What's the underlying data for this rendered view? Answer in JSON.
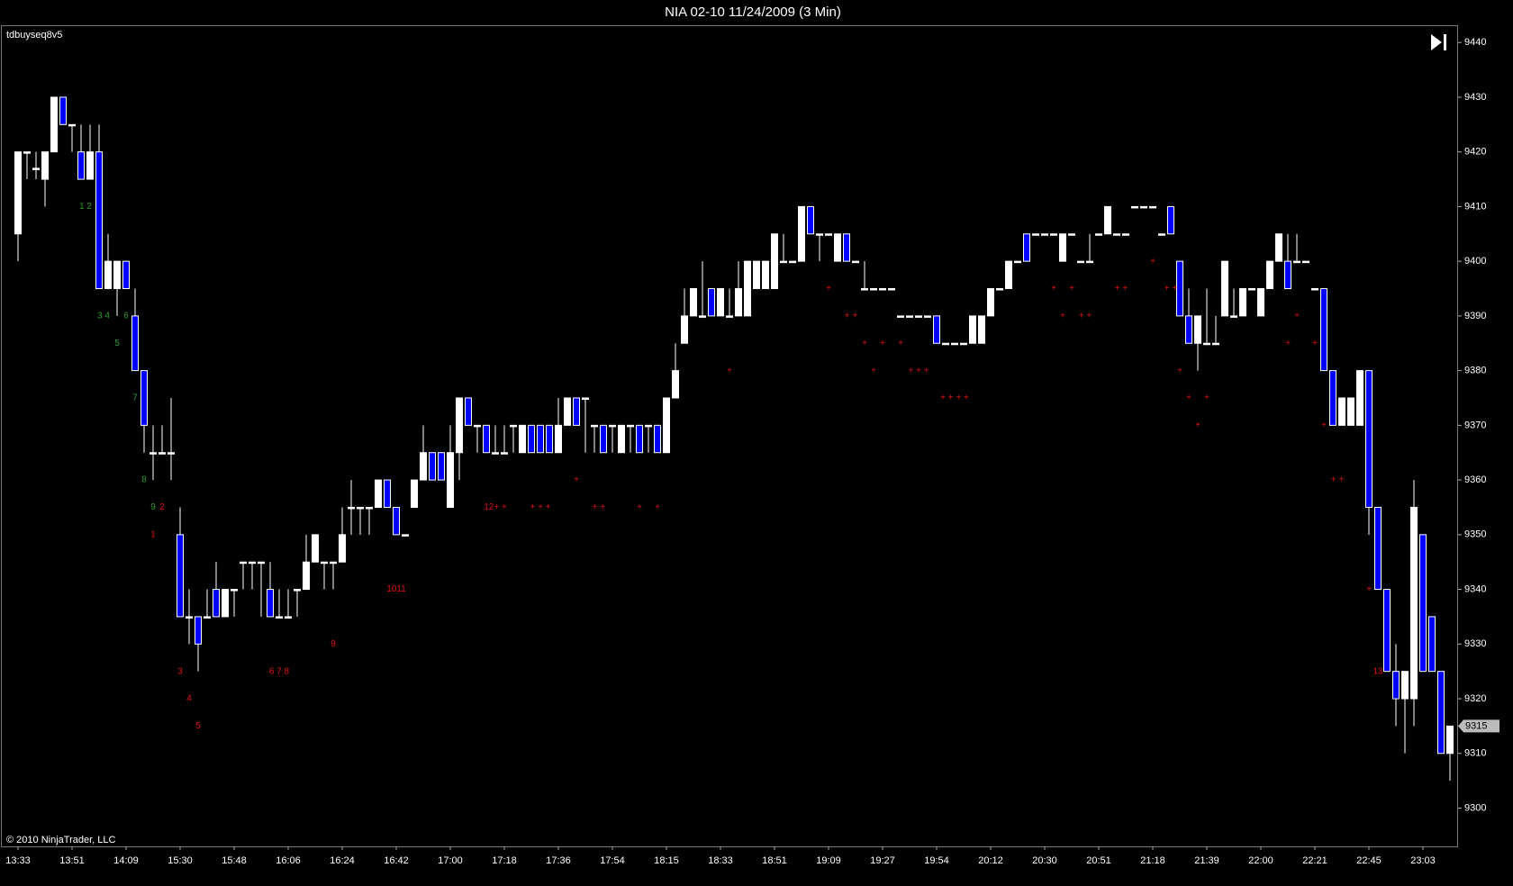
{
  "chart_data": {
    "type": "candlestick",
    "title": "NIA 02-10  11/24/2009 (3 Min)",
    "indicator_label": "tdbuyseq8v5",
    "copyright": "© 2010 NinjaTrader, LLC",
    "up_color": "#ffffff",
    "down_color": "#0000ff",
    "ylim": [
      9293,
      9443
    ],
    "yticks": [
      9300,
      9310,
      9320,
      9330,
      9340,
      9350,
      9360,
      9370,
      9380,
      9390,
      9400,
      9410,
      9420,
      9430,
      9440
    ],
    "last_price": 9315,
    "categories": [
      "13:33",
      null,
      null,
      null,
      null,
      null,
      "13:51",
      null,
      null,
      null,
      null,
      null,
      "14:09",
      null,
      null,
      null,
      null,
      null,
      "15:30",
      null,
      null,
      null,
      null,
      null,
      "15:48",
      null,
      null,
      null,
      null,
      null,
      "16:06",
      null,
      null,
      null,
      null,
      null,
      "16:24",
      null,
      null,
      null,
      null,
      null,
      "16:42",
      null,
      null,
      null,
      null,
      null,
      "17:00",
      null,
      null,
      null,
      null,
      null,
      "17:18",
      null,
      null,
      null,
      null,
      null,
      "17:36",
      null,
      null,
      null,
      null,
      null,
      "17:54",
      null,
      null,
      null,
      null,
      null,
      "18:15",
      null,
      null,
      null,
      null,
      null,
      "18:33",
      null,
      null,
      null,
      null,
      null,
      "18:51",
      null,
      null,
      null,
      null,
      null,
      "19:09",
      null,
      null,
      null,
      null,
      null,
      "19:27",
      null,
      null,
      null,
      null,
      null,
      "19:54",
      null,
      null,
      null,
      null,
      null,
      "20:12",
      null,
      null,
      null,
      null,
      null,
      "20:30",
      null,
      null,
      null,
      null,
      null,
      "20:51",
      null,
      null,
      null,
      null,
      null,
      "21:18",
      null,
      null,
      null,
      null,
      null,
      "21:39",
      null,
      null,
      null,
      null,
      null,
      "22:00",
      null,
      null,
      null,
      null,
      null,
      "22:21",
      null,
      null,
      null,
      null,
      null,
      "22:45",
      null,
      null,
      null,
      null,
      null,
      "23:03",
      null,
      null,
      null
    ],
    "candles": [
      [
        9405,
        9420,
        9400,
        9420
      ],
      [
        9420,
        9420,
        9415,
        9420
      ],
      [
        9417,
        9420,
        9415,
        9417
      ],
      [
        9415,
        9420,
        9410,
        9420
      ],
      [
        9420,
        9430,
        9420,
        9430
      ],
      [
        9430,
        9430,
        9425,
        9425
      ],
      [
        9425,
        9425,
        9420,
        9425
      ],
      [
        9420,
        9425,
        9415,
        9415
      ],
      [
        9415,
        9425,
        9415,
        9420
      ],
      [
        9420,
        9425,
        9395,
        9395
      ],
      [
        9395,
        9405,
        9395,
        9400
      ],
      [
        9395,
        9400,
        9390,
        9400
      ],
      [
        9400,
        9400,
        9395,
        9395
      ],
      [
        9390,
        9395,
        9380,
        9380
      ],
      [
        9380,
        9380,
        9365,
        9370
      ],
      [
        9365,
        9370,
        9360,
        9365
      ],
      [
        9365,
        9370,
        9365,
        9365
      ],
      [
        9365,
        9375,
        9360,
        9365
      ],
      [
        9350,
        9355,
        9335,
        9335
      ],
      [
        9335,
        9340,
        9330,
        9335
      ],
      [
        9335,
        9335,
        9325,
        9330
      ],
      [
        9335,
        9340,
        9335,
        9335
      ],
      [
        9340,
        9345,
        9335,
        9335
      ],
      [
        9335,
        9340,
        9335,
        9340
      ],
      [
        9340,
        9340,
        9335,
        9340
      ],
      [
        9345,
        9345,
        9340,
        9345
      ],
      [
        9345,
        9345,
        9340,
        9345
      ],
      [
        9345,
        9345,
        9335,
        9345
      ],
      [
        9340,
        9345,
        9335,
        9335
      ],
      [
        9335,
        9340,
        9335,
        9335
      ],
      [
        9335,
        9340,
        9335,
        9335
      ],
      [
        9340,
        9340,
        9335,
        9340
      ],
      [
        9340,
        9350,
        9340,
        9345
      ],
      [
        9345,
        9350,
        9345,
        9350
      ],
      [
        9345,
        9345,
        9340,
        9345
      ],
      [
        9345,
        9345,
        9340,
        9345
      ],
      [
        9345,
        9355,
        9345,
        9350
      ],
      [
        9355,
        9360,
        9350,
        9355
      ],
      [
        9355,
        9355,
        9350,
        9355
      ],
      [
        9355,
        9355,
        9350,
        9355
      ],
      [
        9355,
        9360,
        9355,
        9360
      ],
      [
        9360,
        9360,
        9355,
        9355
      ],
      [
        9355,
        9355,
        9350,
        9350
      ],
      [
        9350,
        9350,
        9350,
        9350
      ],
      [
        9355,
        9360,
        9355,
        9360
      ],
      [
        9360,
        9370,
        9360,
        9365
      ],
      [
        9365,
        9365,
        9360,
        9360
      ],
      [
        9365,
        9365,
        9360,
        9360
      ],
      [
        9355,
        9370,
        9355,
        9365
      ],
      [
        9365,
        9375,
        9360,
        9375
      ],
      [
        9375,
        9375,
        9370,
        9370
      ],
      [
        9370,
        9370,
        9365,
        9370
      ],
      [
        9370,
        9370,
        9365,
        9365
      ],
      [
        9365,
        9370,
        9365,
        9365
      ],
      [
        9365,
        9370,
        9365,
        9365
      ],
      [
        9370,
        9370,
        9365,
        9370
      ],
      [
        9365,
        9370,
        9365,
        9370
      ],
      [
        9370,
        9370,
        9365,
        9365
      ],
      [
        9370,
        9370,
        9365,
        9365
      ],
      [
        9370,
        9370,
        9365,
        9365
      ],
      [
        9365,
        9375,
        9365,
        9370
      ],
      [
        9370,
        9375,
        9370,
        9375
      ],
      [
        9375,
        9375,
        9370,
        9370
      ],
      [
        9375,
        9375,
        9365,
        9375
      ],
      [
        9370,
        9370,
        9365,
        9370
      ],
      [
        9370,
        9370,
        9365,
        9365
      ],
      [
        9370,
        9370,
        9365,
        9370
      ],
      [
        9365,
        9370,
        9365,
        9370
      ],
      [
        9370,
        9370,
        9365,
        9370
      ],
      [
        9370,
        9370,
        9365,
        9365
      ],
      [
        9370,
        9370,
        9365,
        9370
      ],
      [
        9370,
        9370,
        9365,
        9365
      ],
      [
        9365,
        9375,
        9365,
        9375
      ],
      [
        9375,
        9385,
        9375,
        9380
      ],
      [
        9385,
        9395,
        9385,
        9390
      ],
      [
        9390,
        9395,
        9390,
        9395
      ],
      [
        9390,
        9400,
        9390,
        9390
      ],
      [
        9395,
        9395,
        9390,
        9390
      ],
      [
        9390,
        9395,
        9390,
        9395
      ],
      [
        9390,
        9395,
        9390,
        9390
      ],
      [
        9390,
        9400,
        9390,
        9395
      ],
      [
        9390,
        9400,
        9390,
        9400
      ],
      [
        9395,
        9400,
        9395,
        9400
      ],
      [
        9395,
        9400,
        9395,
        9400
      ],
      [
        9395,
        9405,
        9395,
        9405
      ],
      [
        9400,
        9405,
        9400,
        9400
      ],
      [
        9400,
        9400,
        9400,
        9400
      ],
      [
        9400,
        9410,
        9400,
        9410
      ],
      [
        9410,
        9410,
        9405,
        9405
      ],
      [
        9405,
        9405,
        9400,
        9405
      ],
      [
        9405,
        9405,
        9405,
        9405
      ],
      [
        9400,
        9405,
        9400,
        9405
      ],
      [
        9405,
        9405,
        9400,
        9400
      ],
      [
        9400,
        9400,
        9400,
        9400
      ],
      [
        9395,
        9400,
        9395,
        9395
      ],
      [
        9395,
        9395,
        9395,
        9395
      ],
      [
        9395,
        9395,
        9395,
        9395
      ],
      [
        9395,
        9395,
        9395,
        9395
      ],
      [
        9390,
        9390,
        9390,
        9390
      ],
      [
        9390,
        9390,
        9390,
        9390
      ],
      [
        9390,
        9390,
        9390,
        9390
      ],
      [
        9390,
        9390,
        9390,
        9390
      ],
      [
        9390,
        9390,
        9385,
        9385
      ],
      [
        9385,
        9385,
        9385,
        9385
      ],
      [
        9385,
        9385,
        9385,
        9385
      ],
      [
        9385,
        9385,
        9385,
        9385
      ],
      [
        9385,
        9390,
        9385,
        9390
      ],
      [
        9385,
        9390,
        9385,
        9390
      ],
      [
        9390,
        9395,
        9390,
        9395
      ],
      [
        9395,
        9395,
        9395,
        9395
      ],
      [
        9395,
        9400,
        9395,
        9400
      ],
      [
        9400,
        9400,
        9400,
        9400
      ],
      [
        9405,
        9405,
        9400,
        9400
      ],
      [
        9405,
        9405,
        9405,
        9405
      ],
      [
        9405,
        9405,
        9405,
        9405
      ],
      [
        9405,
        9405,
        9405,
        9405
      ],
      [
        9400,
        9405,
        9400,
        9405
      ],
      [
        9405,
        9405,
        9405,
        9405
      ],
      [
        9400,
        9400,
        9400,
        9400
      ],
      [
        9400,
        9405,
        9400,
        9400
      ],
      [
        9405,
        9405,
        9405,
        9405
      ],
      [
        9405,
        9410,
        9405,
        9410
      ],
      [
        9405,
        9405,
        9405,
        9405
      ],
      [
        9405,
        9405,
        9405,
        9405
      ],
      [
        9410,
        9410,
        9410,
        9410
      ],
      [
        9410,
        9410,
        9410,
        9410
      ],
      [
        9410,
        9410,
        9410,
        9410
      ],
      [
        9405,
        9405,
        9405,
        9405
      ],
      [
        9410,
        9410,
        9405,
        9405
      ],
      [
        9400,
        9400,
        9390,
        9390
      ],
      [
        9390,
        9395,
        9385,
        9385
      ],
      [
        9385,
        9390,
        9380,
        9390
      ],
      [
        9385,
        9395,
        9385,
        9385
      ],
      [
        9385,
        9390,
        9385,
        9385
      ],
      [
        9390,
        9400,
        9390,
        9400
      ],
      [
        9390,
        9395,
        9390,
        9390
      ],
      [
        9390,
        9395,
        9390,
        9395
      ],
      [
        9395,
        9395,
        9395,
        9395
      ],
      [
        9390,
        9395,
        9390,
        9395
      ],
      [
        9395,
        9400,
        9395,
        9400
      ],
      [
        9400,
        9405,
        9400,
        9405
      ],
      [
        9400,
        9405,
        9395,
        9395
      ],
      [
        9400,
        9405,
        9400,
        9400
      ],
      [
        9400,
        9400,
        9400,
        9400
      ],
      [
        9395,
        9395,
        9395,
        9395
      ],
      [
        9395,
        9395,
        9380,
        9380
      ],
      [
        9380,
        9380,
        9370,
        9370
      ],
      [
        9370,
        9375,
        9370,
        9375
      ],
      [
        9370,
        9375,
        9370,
        9375
      ],
      [
        9370,
        9380,
        9370,
        9380
      ],
      [
        9380,
        9380,
        9350,
        9355
      ],
      [
        9355,
        9355,
        9340,
        9340
      ],
      [
        9340,
        9340,
        9325,
        9325
      ],
      [
        9325,
        9330,
        9315,
        9320
      ],
      [
        9320,
        9325,
        9310,
        9325
      ],
      [
        9320,
        9360,
        9315,
        9355
      ],
      [
        9350,
        9350,
        9325,
        9325
      ],
      [
        9335,
        9335,
        9325,
        9325
      ],
      [
        9325,
        9325,
        9310,
        9310
      ],
      [
        9310,
        9315,
        9305,
        9315
      ]
    ],
    "annotations": [
      {
        "text": "1 2",
        "bar": 7.5,
        "price": 9410,
        "color": "#2e9a2e"
      },
      {
        "text": "3 4",
        "bar": 9.5,
        "price": 9390,
        "color": "#2e9a2e"
      },
      {
        "text": "6",
        "bar": 12,
        "price": 9390,
        "color": "#2e9a2e"
      },
      {
        "text": "5",
        "bar": 11,
        "price": 9385,
        "color": "#2e9a2e"
      },
      {
        "text": "7",
        "bar": 13,
        "price": 9375,
        "color": "#2e9a2e"
      },
      {
        "text": "8",
        "bar": 14,
        "price": 9360,
        "color": "#2e9a2e"
      },
      {
        "text": "9",
        "bar": 15,
        "price": 9355,
        "color": "#2e9a2e"
      },
      {
        "text": "2",
        "bar": 16,
        "price": 9355,
        "color": "#e01010"
      },
      {
        "text": "1",
        "bar": 15,
        "price": 9350,
        "color": "#e01010"
      },
      {
        "text": "3",
        "bar": 18,
        "price": 9325,
        "color": "#e01010"
      },
      {
        "text": "4",
        "bar": 19,
        "price": 9320,
        "color": "#e01010"
      },
      {
        "text": "5",
        "bar": 20,
        "price": 9315,
        "color": "#e01010"
      },
      {
        "text": "6 7 8",
        "bar": 29,
        "price": 9325,
        "color": "#e01010"
      },
      {
        "text": "9",
        "bar": 35,
        "price": 9330,
        "color": "#e01010"
      },
      {
        "text": "1011",
        "bar": 42,
        "price": 9340,
        "color": "#e01010"
      },
      {
        "text": "12+ +",
        "bar": 53,
        "price": 9355,
        "color": "#e01010"
      },
      {
        "text": "+ + +",
        "bar": 58,
        "price": 9355,
        "color": "#e01010"
      },
      {
        "text": "+",
        "bar": 62,
        "price": 9360,
        "color": "#e01010"
      },
      {
        "text": "+ +",
        "bar": 64.5,
        "price": 9355,
        "color": "#e01010"
      },
      {
        "text": "+",
        "bar": 69,
        "price": 9355,
        "color": "#e01010"
      },
      {
        "text": "+",
        "bar": 71,
        "price": 9355,
        "color": "#e01010"
      },
      {
        "text": "+",
        "bar": 79,
        "price": 9380,
        "color": "#e01010"
      },
      {
        "text": "+",
        "bar": 90,
        "price": 9395,
        "color": "#e01010"
      },
      {
        "text": "+ +",
        "bar": 92.5,
        "price": 9390,
        "color": "#e01010"
      },
      {
        "text": "+",
        "bar": 94,
        "price": 9385,
        "color": "#e01010"
      },
      {
        "text": "+",
        "bar": 96,
        "price": 9385,
        "color": "#e01010"
      },
      {
        "text": "+",
        "bar": 98,
        "price": 9385,
        "color": "#e01010"
      },
      {
        "text": "+",
        "bar": 95,
        "price": 9380,
        "color": "#e01010"
      },
      {
        "text": "+ + +",
        "bar": 100,
        "price": 9380,
        "color": "#e01010"
      },
      {
        "text": "+ + + +",
        "bar": 104,
        "price": 9375,
        "color": "#e01010"
      },
      {
        "text": "+",
        "bar": 115,
        "price": 9395,
        "color": "#e01010"
      },
      {
        "text": "+",
        "bar": 117,
        "price": 9395,
        "color": "#e01010"
      },
      {
        "text": "+",
        "bar": 116,
        "price": 9390,
        "color": "#e01010"
      },
      {
        "text": "+ +",
        "bar": 118.5,
        "price": 9390,
        "color": "#e01010"
      },
      {
        "text": "+ +",
        "bar": 122.5,
        "price": 9395,
        "color": "#e01010"
      },
      {
        "text": "+",
        "bar": 126,
        "price": 9400,
        "color": "#e01010"
      },
      {
        "text": "+ +",
        "bar": 128,
        "price": 9395,
        "color": "#e01010"
      },
      {
        "text": "+",
        "bar": 129,
        "price": 9380,
        "color": "#e01010"
      },
      {
        "text": "+",
        "bar": 130,
        "price": 9375,
        "color": "#e01010"
      },
      {
        "text": "+",
        "bar": 132,
        "price": 9375,
        "color": "#e01010"
      },
      {
        "text": "+",
        "bar": 131,
        "price": 9370,
        "color": "#e01010"
      },
      {
        "text": "+",
        "bar": 141,
        "price": 9385,
        "color": "#e01010"
      },
      {
        "text": "+",
        "bar": 144,
        "price": 9385,
        "color": "#e01010"
      },
      {
        "text": "+",
        "bar": 142,
        "price": 9390,
        "color": "#e01010"
      },
      {
        "text": "+",
        "bar": 145,
        "price": 9370,
        "color": "#e01010"
      },
      {
        "text": "+ +",
        "bar": 146.5,
        "price": 9360,
        "color": "#e01010"
      },
      {
        "text": "+",
        "bar": 150,
        "price": 9340,
        "color": "#e01010"
      },
      {
        "text": "13",
        "bar": 151,
        "price": 9325,
        "color": "#e01010"
      }
    ]
  }
}
